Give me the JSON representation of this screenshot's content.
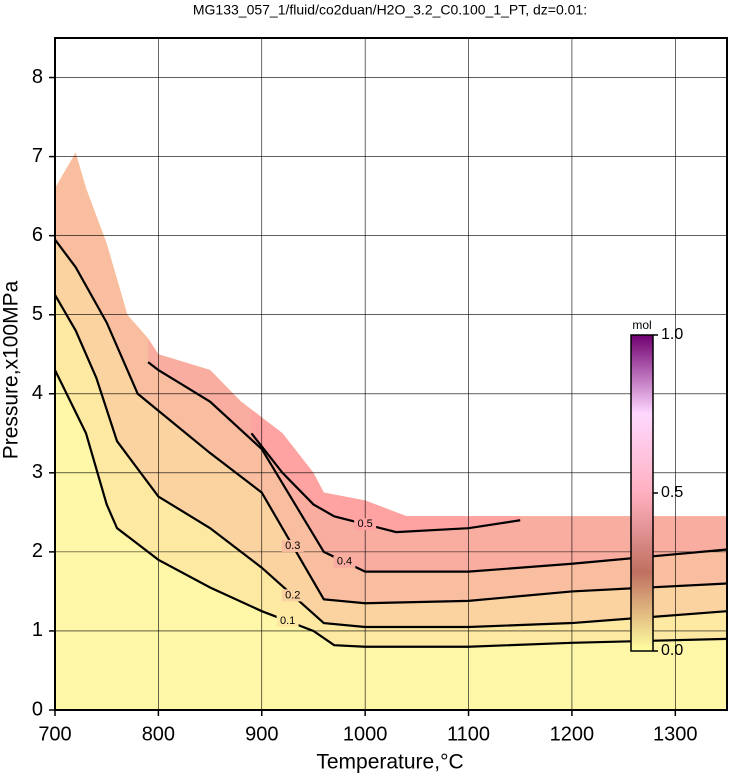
{
  "chart_data": {
    "type": "contour",
    "title": "MG133_057_1/fluid/co2duan/H2O_3.2_C0.100_1_PT, dz=0.01:",
    "xlabel": "Temperature,°C",
    "ylabel": "Pressure,x100MPa",
    "xlim": [
      700,
      1350
    ],
    "ylim": [
      0,
      8.5
    ],
    "xticks": [
      700,
      800,
      900,
      1000,
      1100,
      1200,
      1300
    ],
    "yticks": [
      0,
      1,
      2,
      3,
      4,
      5,
      6,
      7,
      8
    ],
    "grid": true,
    "fill": "#fff7a8",
    "boundary": {
      "x": [
        700,
        700,
        720,
        730,
        750,
        770,
        790,
        800,
        850,
        880,
        920,
        950,
        960,
        1000,
        1040,
        1060,
        1350,
        1350
      ],
      "y": [
        0,
        6.6,
        7.05,
        6.6,
        5.9,
        5.0,
        4.7,
        4.5,
        4.3,
        3.9,
        3.5,
        3.0,
        2.75,
        2.65,
        2.45,
        2.45,
        2.45,
        0
      ]
    },
    "contours": [
      {
        "level": 0.1,
        "fill": "#fde9a2",
        "x": [
          700,
          730,
          750,
          760,
          800,
          850,
          900,
          950,
          970,
          1000,
          1100,
          1200,
          1350
        ],
        "y": [
          4.3,
          3.5,
          2.6,
          2.3,
          1.9,
          1.55,
          1.25,
          1.0,
          0.82,
          0.8,
          0.8,
          0.85,
          0.9
        ]
      },
      {
        "level": 0.2,
        "fill": "#fbd3a0",
        "x": [
          700,
          720,
          740,
          760,
          800,
          850,
          900,
          960,
          1000,
          1100,
          1200,
          1350
        ],
        "y": [
          5.25,
          4.8,
          4.2,
          3.4,
          2.7,
          2.3,
          1.8,
          1.1,
          1.05,
          1.05,
          1.1,
          1.25
        ]
      },
      {
        "level": 0.3,
        "fill": "#f9bea0",
        "x": [
          700,
          720,
          750,
          780,
          850,
          900,
          960,
          1000,
          1100,
          1200,
          1350
        ],
        "y": [
          5.95,
          5.6,
          4.9,
          4.0,
          3.25,
          2.75,
          1.4,
          1.35,
          1.38,
          1.5,
          1.6
        ]
      },
      {
        "level": 0.4,
        "fill": "#f9ada0",
        "x": [
          790,
          800,
          850,
          900,
          960,
          1000,
          1100,
          1200,
          1350
        ],
        "y": [
          4.4,
          4.3,
          3.9,
          3.3,
          2.0,
          1.75,
          1.75,
          1.85,
          2.03
        ]
      },
      {
        "level": 0.5,
        "fill": "#ffa2a2",
        "x": [
          890,
          920,
          950,
          970,
          1030,
          1100,
          1150
        ],
        "y": [
          3.5,
          3.0,
          2.6,
          2.45,
          2.25,
          2.3,
          2.4
        ]
      }
    ],
    "colorbar": {
      "label": "mol",
      "lim": [
        0,
        1
      ],
      "colors": [
        "#ffffa0",
        "#c07060",
        "#ffb0c0",
        "#ffd8ff",
        "#700070"
      ],
      "ticks": [
        {
          "value": 0,
          "label": "0.0"
        },
        {
          "value": 0.5,
          "label": "0.5"
        },
        {
          "value": 1,
          "label": "1.0"
        }
      ]
    }
  }
}
